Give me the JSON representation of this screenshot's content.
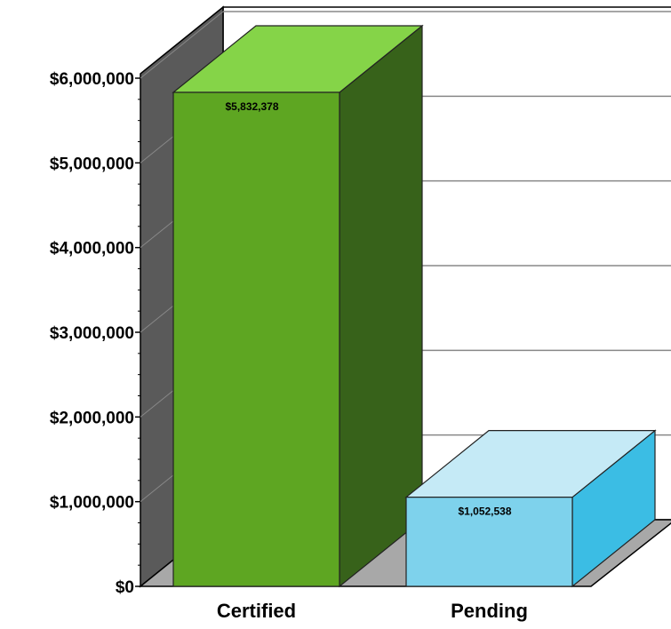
{
  "chart_data": {
    "type": "bar",
    "title": "",
    "xlabel": "",
    "ylabel": "",
    "categories": [
      "Certified",
      "Pending"
    ],
    "values": [
      5832378,
      1052538
    ],
    "data_labels": [
      "$5,832,378",
      "$1,052,538"
    ],
    "ylim": [
      0,
      6000000
    ],
    "yticks": [
      0,
      1000000,
      2000000,
      3000000,
      4000000,
      5000000,
      6000000
    ],
    "ytick_labels": [
      "$0",
      "$1,000,000",
      "$2,000,000",
      "$3,000,000",
      "$4,000,000",
      "$5,000,000",
      "$6,000,000"
    ],
    "grid": true,
    "style": "3d",
    "colors": {
      "Certified": {
        "front": "#5ea622",
        "top": "#85d448",
        "side": "#37621a"
      },
      "Pending": {
        "front": "#7ed2ec",
        "top": "#c5eaf6",
        "side": "#3bbde4"
      },
      "back_wall": "#ffffff",
      "side_wall": "#5a5a5a",
      "floor": "#a8a8a8",
      "grid": "#888888"
    }
  }
}
